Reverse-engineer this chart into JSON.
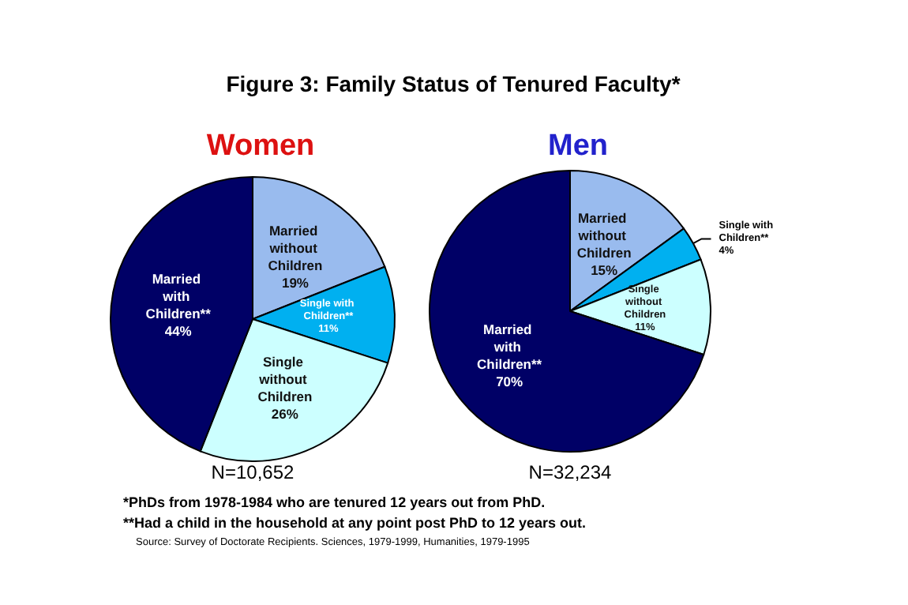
{
  "chart_data": [
    {
      "type": "pie",
      "title": "Women",
      "categories": [
        "Married without Children",
        "Single with Children**",
        "Single without Children",
        "Married with Children**"
      ],
      "values": [
        19,
        11,
        26,
        44
      ],
      "value_labels": [
        "19%",
        "11%",
        "26%",
        "44%"
      ],
      "colors": [
        "#99bbee",
        "#00b0f0",
        "#ccffff",
        "#000066"
      ],
      "legend": false,
      "annotations": [
        "Figure 3: Family Status of Tenured Faculty*",
        "N=10,652",
        "*PhDs from 1978-1984 who are tenured 12 years out from PhD.",
        "**Had a child in the household at any point post PhD to 12 years out.",
        "Source: Survey of Doctorate Recipients.  Sciences, 1979-1999, Humanities, 1979-1995"
      ]
    },
    {
      "type": "pie",
      "title": "Men",
      "categories": [
        "Married without Children",
        "Single with Children**",
        "Single without Children",
        "Married with Children**"
      ],
      "values": [
        15,
        4,
        11,
        70
      ],
      "value_labels": [
        "15%",
        "4%",
        "11%",
        "70%"
      ],
      "colors": [
        "#99bbee",
        "#00b0f0",
        "#ccffff",
        "#000066"
      ],
      "legend": false,
      "annotations": [
        "N=32,234"
      ]
    }
  ]
}
